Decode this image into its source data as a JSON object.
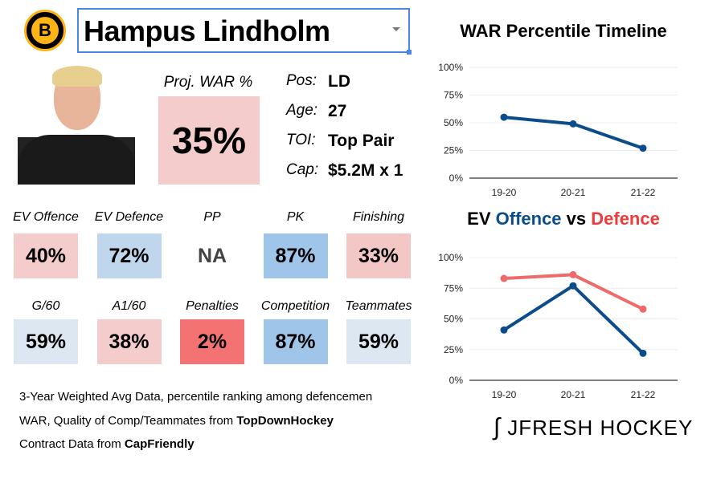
{
  "player": {
    "name": "Hampus Lindholm",
    "team_logo": "B"
  },
  "projection": {
    "label": "Proj. WAR %",
    "value": "35%",
    "color": "#f4cccc"
  },
  "info": [
    {
      "key": "Pos:",
      "value": "LD"
    },
    {
      "key": "Age:",
      "value": "27"
    },
    {
      "key": "TOI:",
      "value": "Top Pair"
    },
    {
      "key": "Cap:",
      "value": "$5.2M x 1"
    }
  ],
  "stats_row1": [
    {
      "label": "EV Offence",
      "value": "40%",
      "color": "#f4cccc"
    },
    {
      "label": "EV Defence",
      "value": "72%",
      "color": "#c0d6ec"
    },
    {
      "label": "PP",
      "value": "NA",
      "color": "#ffffff"
    },
    {
      "label": "PK",
      "value": "87%",
      "color": "#9fc5e8"
    },
    {
      "label": "Finishing",
      "value": "33%",
      "color": "#f4c7c7"
    }
  ],
  "stats_row2": [
    {
      "label": "G/60",
      "value": "59%",
      "color": "#dde7f1"
    },
    {
      "label": "A1/60",
      "value": "38%",
      "color": "#f4cccc"
    },
    {
      "label": "Penalties",
      "value": "2%",
      "color": "#f47272"
    },
    {
      "label": "Competition",
      "value": "87%",
      "color": "#9fc5e8"
    },
    {
      "label": "Teammates",
      "value": "59%",
      "color": "#dde7f1"
    }
  ],
  "footer": {
    "line1": "3-Year Weighted Avg Data, percentile ranking among defencemen",
    "line2_prefix": "WAR, Quality of Comp/Teammates from ",
    "line2_bold": "TopDownHockey",
    "line3_prefix": "Contract Data from ",
    "line3_bold": "CapFriendly"
  },
  "brand": "JFRESH HOCKEY",
  "chart_data": [
    {
      "type": "line",
      "title": "WAR Percentile Timeline",
      "categories": [
        "19-20",
        "20-21",
        "21-22"
      ],
      "yticks": [
        "0%",
        "25%",
        "50%",
        "75%",
        "100%"
      ],
      "ylim": [
        0,
        100
      ],
      "series": [
        {
          "name": "WAR",
          "values": [
            55,
            49,
            27
          ],
          "color": "#0b4c8c"
        }
      ]
    },
    {
      "type": "line",
      "title_parts": [
        "EV ",
        "Offence",
        " vs ",
        "Defence"
      ],
      "categories": [
        "19-20",
        "20-21",
        "21-22"
      ],
      "yticks": [
        "0%",
        "25%",
        "50%",
        "75%",
        "100%"
      ],
      "ylim": [
        0,
        100
      ],
      "series": [
        {
          "name": "Offence",
          "values": [
            41,
            77,
            22
          ],
          "color": "#0b4c8c"
        },
        {
          "name": "Defence",
          "values": [
            83,
            86,
            58
          ],
          "color": "#ef6b6b"
        }
      ]
    }
  ]
}
